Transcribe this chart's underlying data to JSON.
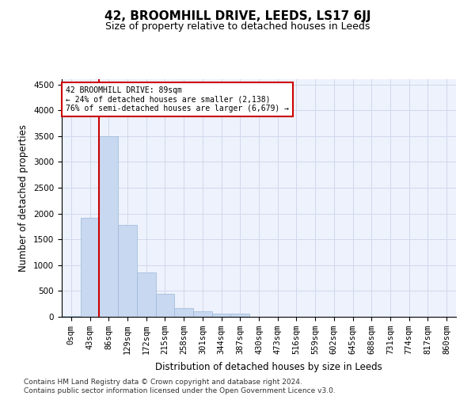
{
  "title": "42, BROOMHILL DRIVE, LEEDS, LS17 6JJ",
  "subtitle": "Size of property relative to detached houses in Leeds",
  "xlabel": "Distribution of detached houses by size in Leeds",
  "ylabel": "Number of detached properties",
  "bar_color": "#c8d8f0",
  "bar_edge_color": "#9ab8d8",
  "vline_color": "#cc0000",
  "vline_x": 2,
  "annotation_text": "42 BROOMHILL DRIVE: 89sqm\n← 24% of detached houses are smaller (2,138)\n76% of semi-detached houses are larger (6,679) →",
  "annotation_box_color": "white",
  "annotation_box_edge": "#cc0000",
  "categories": [
    "0sqm",
    "43sqm",
    "86sqm",
    "129sqm",
    "172sqm",
    "215sqm",
    "258sqm",
    "301sqm",
    "344sqm",
    "387sqm",
    "430sqm",
    "473sqm",
    "516sqm",
    "559sqm",
    "602sqm",
    "645sqm",
    "688sqm",
    "731sqm",
    "774sqm",
    "817sqm",
    "860sqm"
  ],
  "values": [
    20,
    1920,
    3500,
    1780,
    860,
    440,
    170,
    100,
    65,
    55,
    0,
    0,
    0,
    0,
    0,
    0,
    0,
    0,
    0,
    0,
    0
  ],
  "ylim": [
    0,
    4600
  ],
  "yticks": [
    0,
    500,
    1000,
    1500,
    2000,
    2500,
    3000,
    3500,
    4000,
    4500
  ],
  "footer": "Contains HM Land Registry data © Crown copyright and database right 2024.\nContains public sector information licensed under the Open Government Licence v3.0.",
  "title_fontsize": 11,
  "subtitle_fontsize": 9,
  "label_fontsize": 8.5,
  "tick_fontsize": 7.5,
  "footer_fontsize": 6.5,
  "grid_color": "#d0d8ec",
  "background_color": "#eef2fc"
}
